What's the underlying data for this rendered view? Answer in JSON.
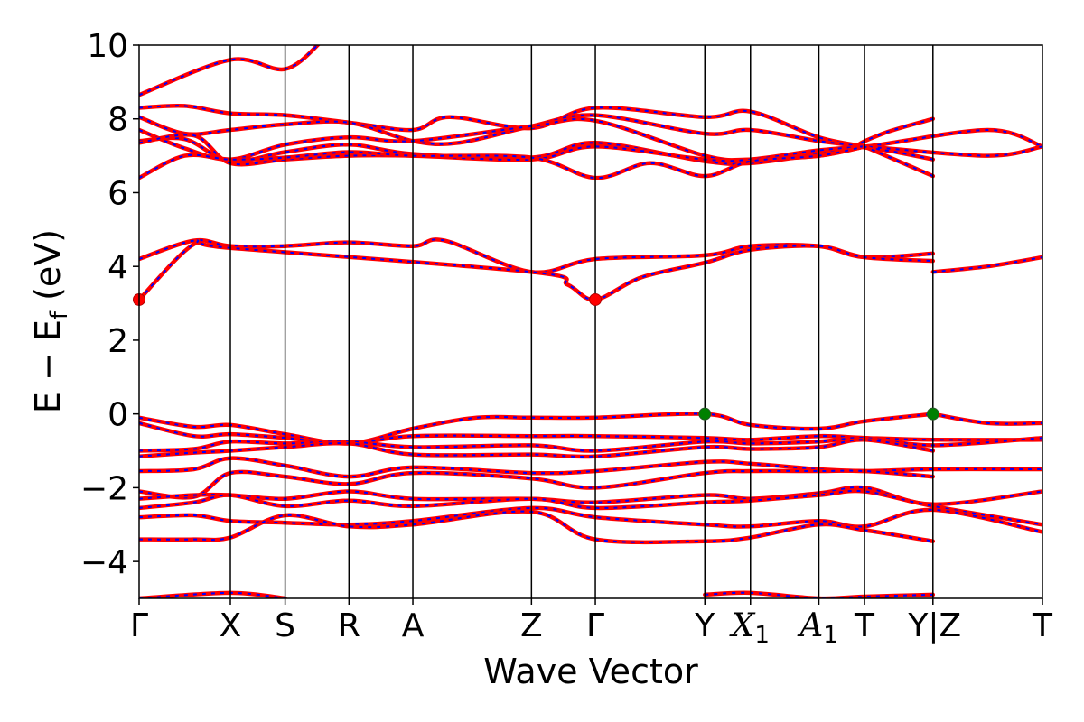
{
  "chart_data": {
    "type": "line",
    "title": "",
    "xlabel": "Wave Vector",
    "ylabel": "E − E_f (eV)",
    "ylabel_parts": {
      "main": "E − E",
      "sub": "f",
      "unit": " (eV)"
    },
    "ylim": [
      -5,
      10
    ],
    "yticks": [
      -4,
      -2,
      0,
      2,
      4,
      6,
      8,
      10
    ],
    "ytick_labels": [
      "−4",
      "−2",
      "0",
      "2",
      "4",
      "6",
      "8",
      "10"
    ],
    "grid": false,
    "legend": "none",
    "colors": {
      "band_primary": "#ff0000",
      "band_secondary": "#0000ff",
      "vbm": "#008000",
      "cbm": "#ff0000",
      "axis": "#000000"
    },
    "kpoints": [
      {
        "label": "Γ",
        "pos": 0.0
      },
      {
        "label": "X",
        "pos": 1.0
      },
      {
        "label": "S",
        "pos": 1.6
      },
      {
        "label": "R",
        "pos": 2.3
      },
      {
        "label": "A",
        "pos": 3.0
      },
      {
        "label": "Z",
        "pos": 4.3
      },
      {
        "label": "Γ",
        "pos": 5.0
      },
      {
        "label": "Y",
        "pos": 6.2
      },
      {
        "label": "X",
        "sub": "1",
        "pos": 6.7
      },
      {
        "label": "A",
        "sub": "1",
        "pos": 7.45
      },
      {
        "label": "T",
        "pos": 7.95
      },
      {
        "label": "Y",
        "pos": 8.7,
        "break": true,
        "after_label": "Z"
      },
      {
        "label": "T",
        "pos": 9.9
      }
    ],
    "xlim": [
      0,
      9.9
    ],
    "series": [
      {
        "values": [
          [
            0,
            8.65
          ],
          [
            1.0,
            9.6
          ],
          [
            1.6,
            9.35
          ],
          [
            2.0,
            10.1
          ]
        ]
      },
      {
        "values": [
          [
            0,
            8.3
          ],
          [
            0.5,
            8.35
          ],
          [
            1.0,
            8.15
          ],
          [
            1.6,
            8.1
          ],
          [
            2.3,
            7.9
          ],
          [
            3.0,
            7.7
          ],
          [
            3.4,
            8.05
          ],
          [
            4.3,
            7.75
          ],
          [
            5.0,
            8.3
          ],
          [
            6.2,
            8.05
          ],
          [
            6.7,
            8.2
          ],
          [
            7.45,
            7.5
          ],
          [
            7.95,
            7.25
          ]
        ]
      },
      {
        "values": [
          [
            0,
            8.05
          ],
          [
            0.5,
            7.6
          ],
          [
            1.0,
            7.7
          ],
          [
            1.6,
            7.85
          ],
          [
            2.3,
            7.9
          ],
          [
            3.0,
            7.4
          ],
          [
            3.5,
            7.35
          ],
          [
            4.3,
            7.8
          ],
          [
            5.0,
            8.1
          ],
          [
            6.2,
            7.6
          ],
          [
            6.7,
            7.7
          ],
          [
            7.45,
            7.4
          ],
          [
            7.95,
            7.25
          ]
        ]
      },
      {
        "values": [
          [
            0,
            7.7
          ],
          [
            0.5,
            7.2
          ],
          [
            1.0,
            6.9
          ],
          [
            1.6,
            7.3
          ],
          [
            2.3,
            7.5
          ],
          [
            3.0,
            7.4
          ],
          [
            4.3,
            7.8
          ],
          [
            5.0,
            7.95
          ],
          [
            6.2,
            7.0
          ],
          [
            6.7,
            6.9
          ],
          [
            7.45,
            7.0
          ],
          [
            7.95,
            7.25
          ]
        ]
      },
      {
        "values": [
          [
            0,
            7.4
          ],
          [
            0.5,
            7.45
          ],
          [
            1.0,
            6.85
          ],
          [
            1.6,
            7.1
          ],
          [
            2.3,
            7.3
          ],
          [
            3.0,
            7.05
          ],
          [
            4.3,
            6.95
          ],
          [
            5.0,
            7.35
          ],
          [
            6.2,
            6.85
          ],
          [
            6.7,
            6.8
          ],
          [
            7.45,
            7.05
          ],
          [
            7.95,
            7.25
          ]
        ]
      },
      {
        "values": [
          [
            0,
            7.35
          ],
          [
            0.6,
            7.55
          ],
          [
            1.0,
            6.8
          ],
          [
            1.6,
            6.9
          ],
          [
            2.3,
            7.0
          ],
          [
            3.0,
            7.0
          ],
          [
            4.3,
            6.9
          ],
          [
            5.0,
            7.25
          ],
          [
            6.2,
            6.9
          ],
          [
            6.7,
            6.9
          ],
          [
            7.45,
            7.15
          ],
          [
            7.95,
            7.25
          ]
        ]
      },
      {
        "values": [
          [
            0,
            6.4
          ],
          [
            0.5,
            7.0
          ],
          [
            1.0,
            6.9
          ],
          [
            1.6,
            6.95
          ],
          [
            2.3,
            7.1
          ],
          [
            3.0,
            7.0
          ],
          [
            4.3,
            6.95
          ],
          [
            5.0,
            6.4
          ],
          [
            5.6,
            6.8
          ],
          [
            6.2,
            6.45
          ],
          [
            6.7,
            6.85
          ],
          [
            7.45,
            7.0
          ],
          [
            7.95,
            7.25
          ]
        ]
      },
      {
        "values": [
          [
            8.7,
            8.0
          ],
          [
            8.15,
            7.6
          ],
          [
            7.95,
            7.25
          ],
          [
            9.3,
            7.7
          ],
          [
            9.9,
            7.25
          ]
        ]
      },
      {
        "values": [
          [
            8.7,
            6.9
          ],
          [
            8.3,
            7.1
          ],
          [
            7.95,
            7.25
          ],
          [
            9.3,
            7.0
          ],
          [
            9.9,
            7.25
          ]
        ]
      },
      {
        "values": [
          [
            8.7,
            6.45
          ],
          [
            7.95,
            7.25
          ]
        ]
      },
      {
        "values": [
          [
            0,
            4.2
          ],
          [
            0.6,
            4.7
          ],
          [
            1.0,
            4.55
          ],
          [
            1.6,
            4.55
          ],
          [
            2.3,
            4.65
          ],
          [
            3.0,
            4.55
          ],
          [
            3.35,
            4.7
          ],
          [
            4.3,
            3.85
          ],
          [
            5.0,
            4.2
          ],
          [
            6.2,
            4.3
          ],
          [
            6.7,
            4.55
          ],
          [
            7.45,
            4.55
          ],
          [
            7.95,
            4.25
          ],
          [
            8.7,
            4.35
          ]
        ]
      },
      {
        "values": [
          [
            0,
            3.1
          ],
          [
            0.6,
            4.6
          ],
          [
            1.0,
            4.5
          ],
          [
            4.3,
            3.85
          ],
          [
            4.7,
            3.5
          ],
          [
            5.0,
            3.1
          ],
          [
            5.5,
            3.7
          ],
          [
            6.2,
            4.1
          ],
          [
            6.7,
            4.45
          ],
          [
            7.45,
            4.55
          ],
          [
            7.95,
            4.25
          ],
          [
            8.7,
            4.15
          ]
        ]
      },
      {
        "values": [
          [
            8.7,
            3.85
          ],
          [
            9.3,
            4.0
          ],
          [
            9.9,
            4.25
          ]
        ]
      },
      {
        "values": [
          [
            0,
            -0.1
          ],
          [
            0.6,
            -0.35
          ],
          [
            1.0,
            -0.3
          ],
          [
            1.6,
            -0.55
          ],
          [
            2.3,
            -0.8
          ],
          [
            3.0,
            -0.4
          ],
          [
            3.7,
            -0.1
          ],
          [
            4.3,
            -0.1
          ],
          [
            5.0,
            -0.1
          ],
          [
            6.2,
            0.0
          ],
          [
            6.7,
            -0.3
          ],
          [
            7.45,
            -0.4
          ],
          [
            7.95,
            -0.2
          ],
          [
            8.7,
            0.0
          ]
        ]
      },
      {
        "values": [
          [
            8.7,
            0.0
          ],
          [
            9.3,
            -0.25
          ],
          [
            9.9,
            -0.25
          ]
        ]
      },
      {
        "values": [
          [
            0,
            -0.25
          ],
          [
            0.6,
            -0.6
          ],
          [
            1.0,
            -0.55
          ],
          [
            1.6,
            -0.65
          ],
          [
            2.3,
            -0.8
          ],
          [
            3.0,
            -0.6
          ],
          [
            4.3,
            -0.6
          ],
          [
            5.0,
            -0.6
          ],
          [
            6.2,
            -0.65
          ],
          [
            6.7,
            -0.7
          ],
          [
            7.45,
            -0.6
          ],
          [
            7.95,
            -0.65
          ],
          [
            8.7,
            -0.7
          ],
          [
            9.9,
            -0.7
          ]
        ]
      },
      {
        "values": [
          [
            0,
            -1.0
          ],
          [
            0.6,
            -0.95
          ],
          [
            1.0,
            -0.75
          ],
          [
            1.6,
            -0.8
          ],
          [
            2.3,
            -0.75
          ],
          [
            3.0,
            -0.9
          ],
          [
            4.3,
            -0.85
          ],
          [
            5.0,
            -1.0
          ],
          [
            6.2,
            -0.75
          ],
          [
            6.7,
            -0.8
          ],
          [
            7.45,
            -0.75
          ],
          [
            7.95,
            -0.65
          ],
          [
            8.7,
            -0.85
          ],
          [
            9.9,
            -0.65
          ]
        ]
      },
      {
        "values": [
          [
            0,
            -1.15
          ],
          [
            0.6,
            -1.05
          ],
          [
            1.0,
            -1.0
          ],
          [
            1.6,
            -0.9
          ],
          [
            2.3,
            -0.8
          ],
          [
            3.0,
            -1.1
          ],
          [
            4.3,
            -1.1
          ],
          [
            5.0,
            -1.15
          ],
          [
            6.2,
            -0.9
          ],
          [
            6.7,
            -0.95
          ],
          [
            7.45,
            -0.9
          ],
          [
            7.95,
            -0.7
          ],
          [
            8.7,
            -1.0
          ]
        ]
      },
      {
        "values": [
          [
            0,
            -1.55
          ],
          [
            0.6,
            -1.5
          ],
          [
            1.0,
            -1.2
          ],
          [
            1.6,
            -1.4
          ],
          [
            2.3,
            -1.7
          ],
          [
            3.0,
            -1.45
          ],
          [
            4.3,
            -1.6
          ],
          [
            5.0,
            -1.55
          ],
          [
            6.2,
            -1.3
          ],
          [
            6.7,
            -1.35
          ],
          [
            7.45,
            -1.5
          ],
          [
            7.95,
            -1.55
          ],
          [
            8.7,
            -1.5
          ],
          [
            9.9,
            -1.5
          ]
        ]
      },
      {
        "values": [
          [
            0,
            -2.1
          ],
          [
            0.6,
            -2.25
          ],
          [
            1.0,
            -1.6
          ],
          [
            1.6,
            -1.7
          ],
          [
            2.3,
            -1.9
          ],
          [
            3.0,
            -1.6
          ],
          [
            4.3,
            -1.75
          ],
          [
            5.0,
            -2.0
          ],
          [
            6.2,
            -1.6
          ],
          [
            6.7,
            -1.55
          ],
          [
            7.45,
            -1.55
          ],
          [
            7.95,
            -1.55
          ],
          [
            8.7,
            -1.7
          ]
        ]
      },
      {
        "values": [
          [
            0,
            -2.3
          ],
          [
            0.6,
            -2.2
          ],
          [
            1.0,
            -2.2
          ],
          [
            1.6,
            -2.3
          ],
          [
            2.3,
            -2.1
          ],
          [
            3.0,
            -2.3
          ],
          [
            4.3,
            -2.3
          ],
          [
            5.0,
            -2.4
          ],
          [
            6.2,
            -2.2
          ],
          [
            6.7,
            -2.3
          ],
          [
            7.45,
            -2.15
          ],
          [
            7.95,
            -2.0
          ],
          [
            8.7,
            -2.45
          ],
          [
            9.9,
            -2.1
          ]
        ]
      },
      {
        "values": [
          [
            0,
            -2.55
          ],
          [
            0.6,
            -2.4
          ],
          [
            1.0,
            -2.2
          ],
          [
            1.6,
            -2.5
          ],
          [
            2.3,
            -2.35
          ],
          [
            3.0,
            -2.5
          ],
          [
            4.3,
            -2.3
          ],
          [
            5.0,
            -2.55
          ],
          [
            6.2,
            -2.4
          ],
          [
            6.7,
            -2.35
          ],
          [
            7.45,
            -2.2
          ],
          [
            7.95,
            -2.1
          ],
          [
            8.7,
            -2.5
          ],
          [
            9.9,
            -3.0
          ]
        ]
      },
      {
        "values": [
          [
            0,
            -2.8
          ],
          [
            0.6,
            -2.75
          ],
          [
            1.0,
            -2.9
          ],
          [
            1.6,
            -2.95
          ],
          [
            2.3,
            -3.0
          ],
          [
            3.0,
            -2.9
          ],
          [
            4.3,
            -2.55
          ],
          [
            5.0,
            -2.8
          ],
          [
            6.2,
            -3.0
          ],
          [
            6.7,
            -3.05
          ],
          [
            7.45,
            -2.9
          ],
          [
            7.95,
            -3.05
          ],
          [
            8.7,
            -2.6
          ],
          [
            9.9,
            -3.2
          ]
        ]
      },
      {
        "values": [
          [
            0,
            -3.4
          ],
          [
            0.6,
            -3.4
          ],
          [
            1.0,
            -3.35
          ],
          [
            1.6,
            -2.75
          ],
          [
            2.3,
            -3.05
          ],
          [
            3.0,
            -3.0
          ],
          [
            4.3,
            -2.65
          ],
          [
            5.0,
            -3.4
          ],
          [
            6.2,
            -3.45
          ],
          [
            6.7,
            -3.35
          ],
          [
            7.45,
            -3.0
          ],
          [
            7.95,
            -3.15
          ],
          [
            8.7,
            -3.45
          ]
        ]
      },
      {
        "values": [
          [
            0,
            -5.0
          ],
          [
            1.0,
            -4.85
          ],
          [
            1.6,
            -5.0
          ]
        ]
      },
      {
        "values": [
          [
            6.2,
            -4.9
          ],
          [
            6.7,
            -4.85
          ],
          [
            7.45,
            -5.0
          ],
          [
            7.95,
            -4.95
          ],
          [
            8.7,
            -4.9
          ]
        ]
      }
    ],
    "markers": [
      {
        "kind": "cbm",
        "x": 0.0,
        "y": 3.1
      },
      {
        "kind": "cbm",
        "x": 5.0,
        "y": 3.1
      },
      {
        "kind": "vbm",
        "x": 6.2,
        "y": 0.0
      },
      {
        "kind": "vbm",
        "x": 8.7,
        "y": 0.0
      }
    ]
  }
}
